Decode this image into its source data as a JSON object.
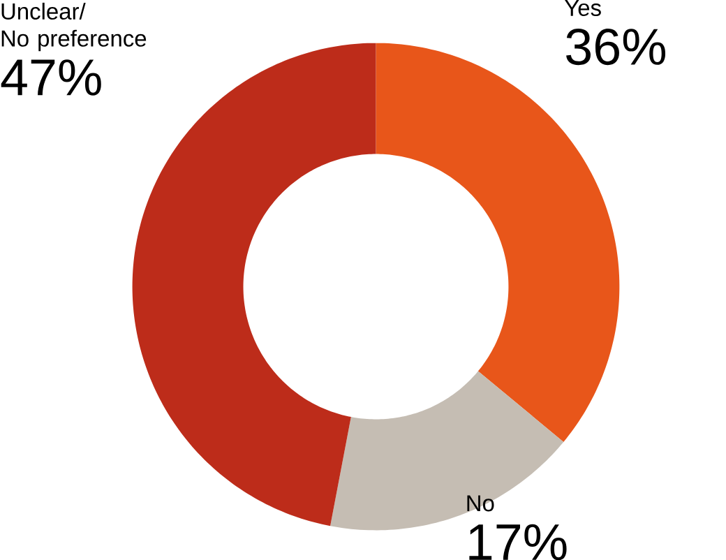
{
  "chart_data": {
    "type": "donut",
    "categories": [
      "Yes",
      "No",
      "Unclear/ No preference"
    ],
    "values": [
      36,
      17,
      47
    ],
    "value_labels": [
      "36%",
      "17%",
      "47%"
    ],
    "colors": [
      "#e8561a",
      "#c5bdb3",
      "#bd2c1a"
    ]
  }
}
